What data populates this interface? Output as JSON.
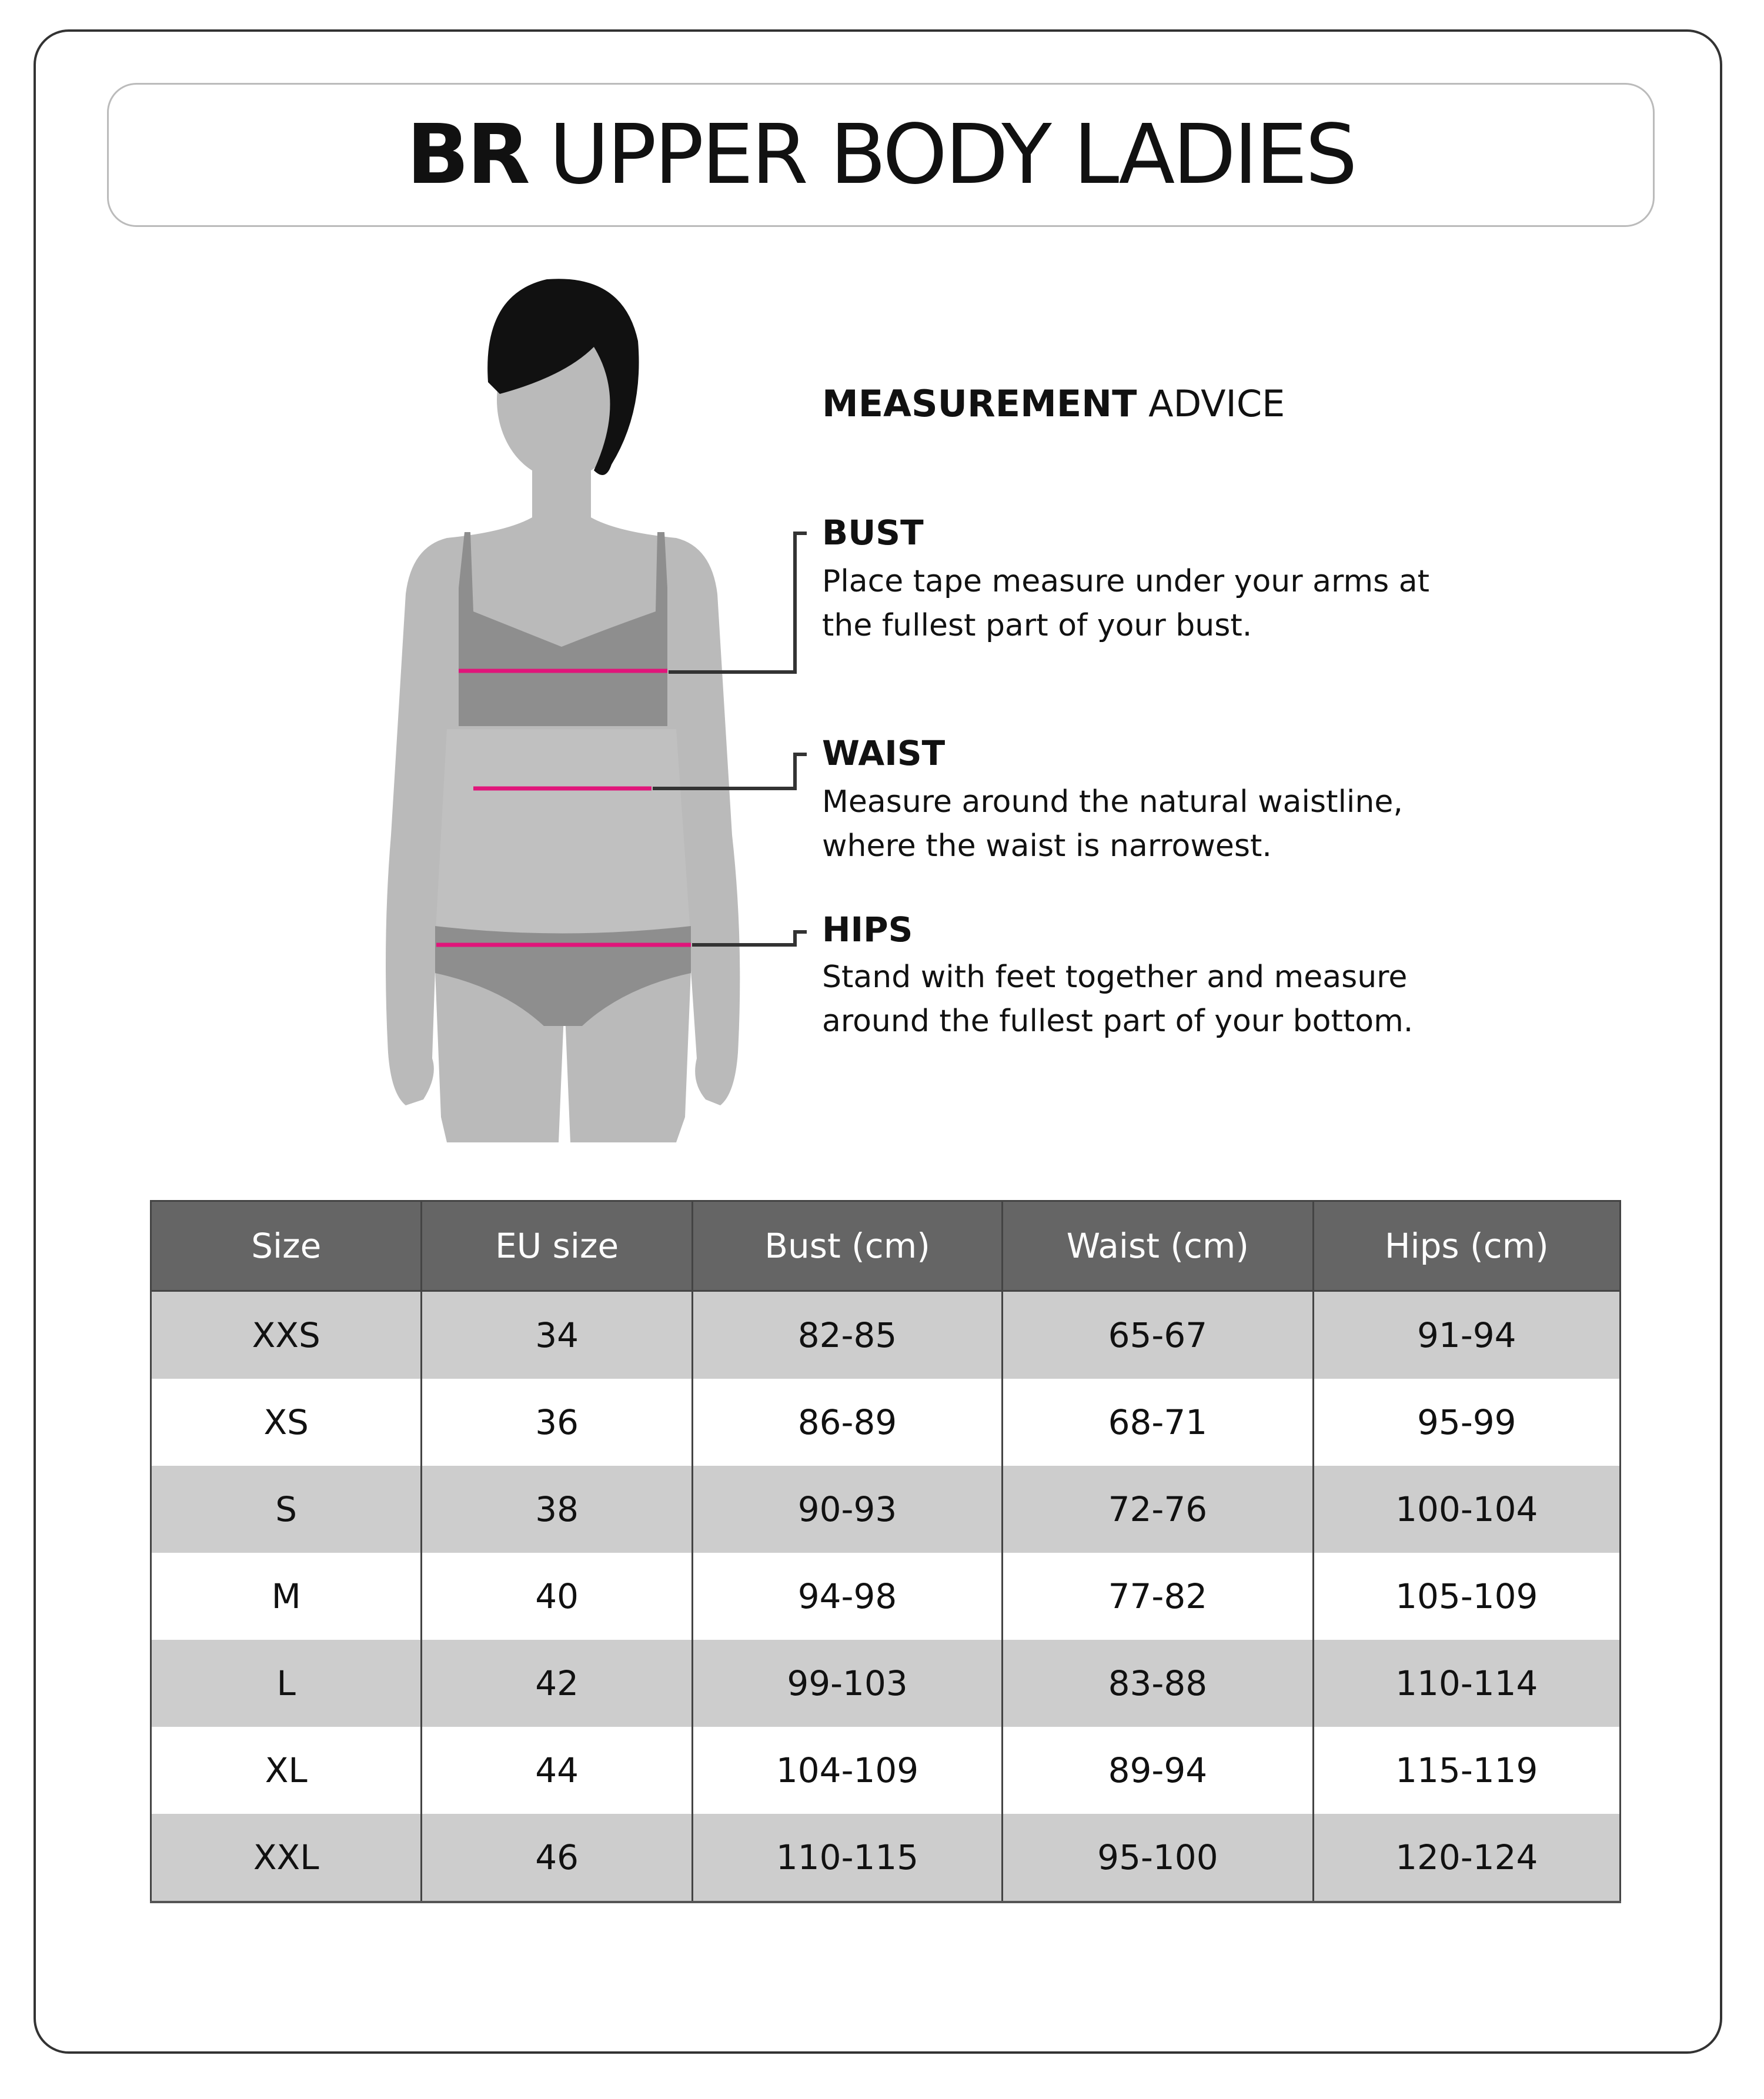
{
  "title": {
    "bold": "BR",
    "light": "UPPER BODY LADIES"
  },
  "advice": {
    "bold": "MEASUREMENT",
    "light": "ADVICE"
  },
  "sections": [
    {
      "heading": "BUST",
      "line1": "Place tape measure under your arms at",
      "line2": "the fullest part of your bust."
    },
    {
      "heading": "WAIST",
      "line1": "Measure around the natural waistline,",
      "line2": "where the waist is narrowest."
    },
    {
      "heading": "HIPS",
      "line1": "Stand with feet together and measure",
      "line2": "around the fullest part of your bottom."
    }
  ],
  "colors": {
    "measure_line": "#e0157a",
    "header_bg": "#656565",
    "odd_row": "#cdcdcd",
    "body": "#bababa",
    "garment": "#8e8e8e"
  },
  "table": {
    "headers": [
      "Size",
      "EU size",
      "Bust (cm)",
      "Waist (cm)",
      "Hips (cm)"
    ],
    "rows": [
      [
        "XXS",
        "34",
        "82-85",
        "65-67",
        "91-94"
      ],
      [
        "XS",
        "36",
        "86-89",
        "68-71",
        "95-99"
      ],
      [
        "S",
        "38",
        "90-93",
        "72-76",
        "100-104"
      ],
      [
        "M",
        "40",
        "94-98",
        "77-82",
        "105-109"
      ],
      [
        "L",
        "42",
        "99-103",
        "83-88",
        "110-114"
      ],
      [
        "XL",
        "44",
        "104-109",
        "89-94",
        "115-119"
      ],
      [
        "XXL",
        "46",
        "110-115",
        "95-100",
        "120-124"
      ]
    ]
  }
}
